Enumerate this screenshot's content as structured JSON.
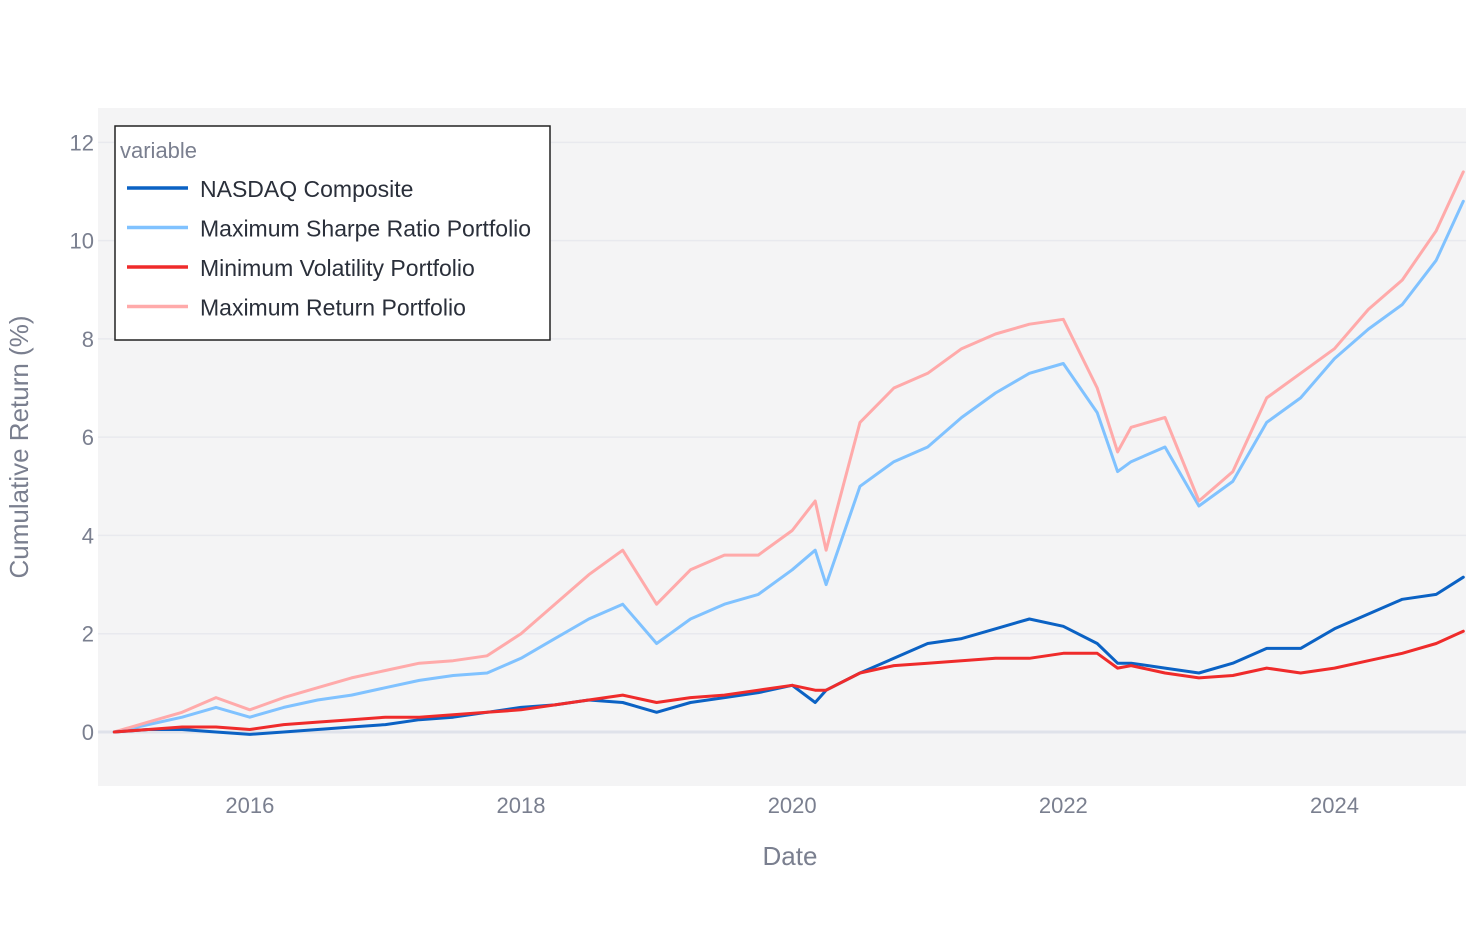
{
  "chart_data": {
    "type": "line",
    "xlabel": "Date",
    "ylabel": "Cumulative Return (%)",
    "xlim": [
      2014.88,
      2024.97
    ],
    "ylim": [
      -1.1,
      12.7
    ],
    "x_ticks": [
      2016,
      2018,
      2020,
      2022,
      2024
    ],
    "x_tick_labels": [
      "2016",
      "2018",
      "2020",
      "2022",
      "2024"
    ],
    "y_ticks": [
      0,
      2,
      4,
      6,
      8,
      10,
      12
    ],
    "y_tick_labels": [
      "0",
      "2",
      "4",
      "6",
      "8",
      "10",
      "12"
    ],
    "grid": true,
    "legend": {
      "title": "variable",
      "placement": "top-left"
    },
    "x": [
      2015.0,
      2015.25,
      2015.5,
      2015.75,
      2016.0,
      2016.25,
      2016.5,
      2016.75,
      2017.0,
      2017.25,
      2017.5,
      2017.75,
      2018.0,
      2018.25,
      2018.5,
      2018.75,
      2019.0,
      2019.25,
      2019.5,
      2019.75,
      2020.0,
      2020.17,
      2020.25,
      2020.5,
      2020.75,
      2021.0,
      2021.25,
      2021.5,
      2021.75,
      2022.0,
      2022.25,
      2022.4,
      2022.5,
      2022.75,
      2023.0,
      2023.25,
      2023.5,
      2023.75,
      2024.0,
      2024.25,
      2024.5,
      2024.75,
      2024.95
    ],
    "series": [
      {
        "name": "NASDAQ Composite",
        "color": "#0b62c4",
        "values": [
          0.0,
          0.05,
          0.05,
          0.0,
          -0.05,
          0.0,
          0.05,
          0.1,
          0.15,
          0.25,
          0.3,
          0.4,
          0.5,
          0.55,
          0.65,
          0.6,
          0.4,
          0.6,
          0.7,
          0.8,
          0.95,
          0.6,
          0.85,
          1.2,
          1.5,
          1.8,
          1.9,
          2.1,
          2.3,
          2.15,
          1.8,
          1.4,
          1.4,
          1.3,
          1.2,
          1.4,
          1.7,
          1.7,
          2.1,
          2.4,
          2.7,
          2.8,
          3.15
        ]
      },
      {
        "name": "Maximum Sharpe Ratio Portfolio",
        "color": "#80c2ff",
        "values": [
          0.0,
          0.15,
          0.3,
          0.5,
          0.3,
          0.5,
          0.65,
          0.75,
          0.9,
          1.05,
          1.15,
          1.2,
          1.5,
          1.9,
          2.3,
          2.6,
          1.8,
          2.3,
          2.6,
          2.8,
          3.3,
          3.7,
          3.0,
          5.0,
          5.5,
          5.8,
          6.4,
          6.9,
          7.3,
          7.5,
          6.5,
          5.3,
          5.5,
          5.8,
          4.6,
          5.1,
          6.3,
          6.8,
          7.6,
          8.2,
          8.7,
          9.6,
          10.8
        ]
      },
      {
        "name": "Minimum Volatility Portfolio",
        "color": "#ef2b2b",
        "values": [
          0.0,
          0.05,
          0.1,
          0.1,
          0.05,
          0.15,
          0.2,
          0.25,
          0.3,
          0.3,
          0.35,
          0.4,
          0.45,
          0.55,
          0.65,
          0.75,
          0.6,
          0.7,
          0.75,
          0.85,
          0.95,
          0.85,
          0.85,
          1.2,
          1.35,
          1.4,
          1.45,
          1.5,
          1.5,
          1.6,
          1.6,
          1.3,
          1.35,
          1.2,
          1.1,
          1.15,
          1.3,
          1.2,
          1.3,
          1.45,
          1.6,
          1.8,
          2.05
        ]
      },
      {
        "name": "Maximum Return Portfolio",
        "color": "#ffaaaa",
        "values": [
          0.0,
          0.2,
          0.4,
          0.7,
          0.45,
          0.7,
          0.9,
          1.1,
          1.25,
          1.4,
          1.45,
          1.55,
          2.0,
          2.6,
          3.2,
          3.7,
          2.6,
          3.3,
          3.6,
          3.6,
          4.1,
          4.7,
          3.7,
          6.3,
          7.0,
          7.3,
          7.8,
          8.1,
          8.3,
          8.4,
          7.0,
          5.7,
          6.2,
          6.4,
          4.7,
          5.3,
          6.8,
          7.3,
          7.8,
          8.6,
          9.2,
          10.2,
          11.4
        ]
      }
    ]
  }
}
